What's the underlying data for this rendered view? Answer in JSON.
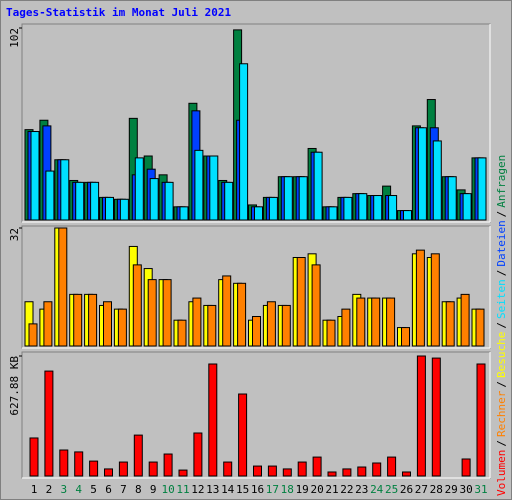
{
  "title": "Tages-Statistik im Monat Juli 2021",
  "legend_separator": "/",
  "chart_data": [
    {
      "type": "bar",
      "ylim": [
        0,
        102
      ],
      "yticks": [
        102
      ],
      "series": [
        {
          "name": "Anfragen",
          "color": "#008040",
          "values": [
            48,
            53,
            32,
            21,
            20,
            12,
            11,
            54,
            34,
            24,
            7,
            62,
            34,
            21,
            101,
            8,
            12,
            23,
            23,
            38,
            7,
            12,
            14,
            13,
            18,
            5,
            50,
            64,
            23,
            16,
            33
          ]
        },
        {
          "name": "Dateien",
          "color": "#0040ff",
          "values": [
            47,
            50,
            32,
            20,
            20,
            12,
            11,
            24,
            27,
            20,
            7,
            58,
            34,
            20,
            53,
            7,
            12,
            23,
            23,
            36,
            7,
            12,
            14,
            13,
            13,
            5,
            49,
            49,
            23,
            14,
            33
          ]
        },
        {
          "name": "Seiten",
          "color": "#00e0ff",
          "values": [
            47,
            26,
            32,
            20,
            20,
            12,
            11,
            33,
            22,
            20,
            7,
            37,
            34,
            20,
            83,
            7,
            12,
            23,
            23,
            36,
            7,
            12,
            14,
            13,
            13,
            5,
            49,
            42,
            23,
            14,
            33
          ]
        }
      ]
    },
    {
      "type": "bar",
      "ylim": [
        0,
        32
      ],
      "yticks": [
        32
      ],
      "series": [
        {
          "name": "Besuche",
          "color": "#ffff00",
          "values": [
            12,
            10,
            32,
            14,
            14,
            11,
            10,
            27,
            21,
            18,
            7,
            12,
            11,
            18,
            17,
            7,
            11,
            11,
            24,
            25,
            7,
            8,
            14,
            13,
            13,
            5,
            25,
            24,
            12,
            13,
            10
          ]
        },
        {
          "name": "Rechner",
          "color": "#ff8000",
          "values": [
            6,
            12,
            32,
            14,
            14,
            12,
            10,
            22,
            18,
            18,
            7,
            13,
            11,
            19,
            17,
            8,
            12,
            11,
            24,
            22,
            7,
            10,
            13,
            13,
            13,
            5,
            26,
            25,
            12,
            14,
            10
          ]
        }
      ]
    },
    {
      "type": "bar",
      "ylim": [
        0,
        627.88
      ],
      "yticks": [
        {
          "value": 627.88,
          "label": "627.88 KB"
        }
      ],
      "categories": [
        "1",
        "2",
        "3",
        "4",
        "5",
        "6",
        "7",
        "8",
        "9",
        "10",
        "11",
        "12",
        "13",
        "14",
        "15",
        "16",
        "17",
        "18",
        "19",
        "20",
        "21",
        "22",
        "23",
        "24",
        "25",
        "26",
        "27",
        "28",
        "29",
        "30",
        "31"
      ],
      "category_colors": [
        "#000000",
        "#000000",
        "#008040",
        "#008040",
        "#000000",
        "#000000",
        "#000000",
        "#000000",
        "#000000",
        "#008040",
        "#008040",
        "#000000",
        "#000000",
        "#000000",
        "#000000",
        "#000000",
        "#008040",
        "#008040",
        "#000000",
        "#000000",
        "#000000",
        "#000000",
        "#000000",
        "#008040",
        "#008040",
        "#000000",
        "#000000",
        "#000000",
        "#000000",
        "#000000",
        "#008040"
      ],
      "series": [
        {
          "name": "Volumen",
          "color": "#ff0000",
          "values": [
            199,
            549,
            136,
            126,
            78,
            37,
            73,
            214,
            73,
            115,
            31,
            225,
            586,
            73,
            429,
            52,
            52,
            37,
            73,
            99,
            21,
            37,
            47,
            68,
            99,
            21,
            627.88,
            617,
            0,
            89,
            586
          ]
        }
      ]
    }
  ]
}
